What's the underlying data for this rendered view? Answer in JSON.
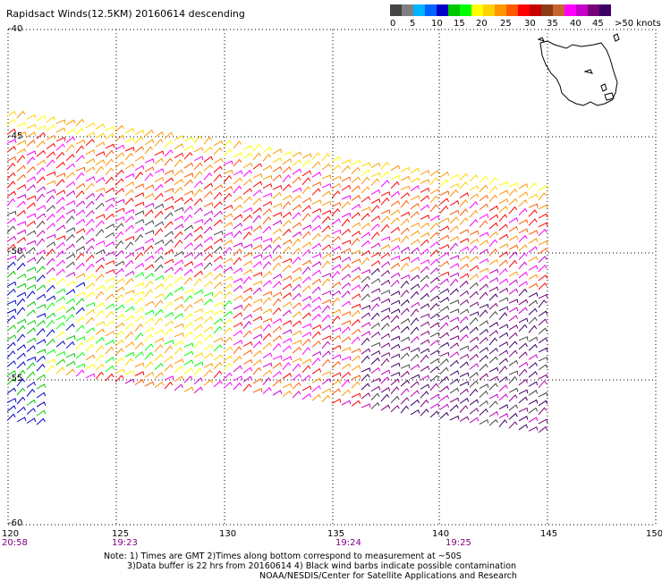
{
  "title": "Rapidsact Winds(12.5KM) 20160614 descending",
  "legend": {
    "colors": [
      "#444444",
      "#808080",
      "#00b4ff",
      "#0064ff",
      "#0000c8",
      "#00c800",
      "#00ff00",
      "#ffff00",
      "#ffd200",
      "#ff9600",
      "#ff5a00",
      "#ff0000",
      "#c80000",
      "#8c3c14",
      "#c86432",
      "#ff00ff",
      "#c800c8",
      "#780078",
      "#3c0064"
    ],
    "ticks": [
      "0",
      "5",
      "10",
      "15",
      "20",
      "25",
      "30",
      "35",
      "40",
      "45",
      ">50 knots"
    ]
  },
  "map": {
    "lon_ticks": [
      "120",
      "125",
      "130",
      "135",
      "140",
      "145",
      "150"
    ],
    "lat_ticks": [
      "-40",
      "-45",
      "-50",
      "-55",
      "-60"
    ],
    "times": [
      {
        "label": "20:58",
        "color": "#800080"
      },
      {
        "label": "19:23",
        "color": "#800080"
      },
      {
        "label": "19:24",
        "color": "#800080"
      },
      {
        "label": "19:25",
        "color": "#800080"
      }
    ]
  },
  "notes": {
    "line1": "Note: 1) Times are GMT 2)Times along bottom correspond to measurement at ~50S",
    "line2": "3)Data buffer is 22 hrs from 20160614 4) Black wind barbs indicate possible contamination",
    "line3": "NOAA/NESDIS/Center for Satellite Applications and Research"
  }
}
